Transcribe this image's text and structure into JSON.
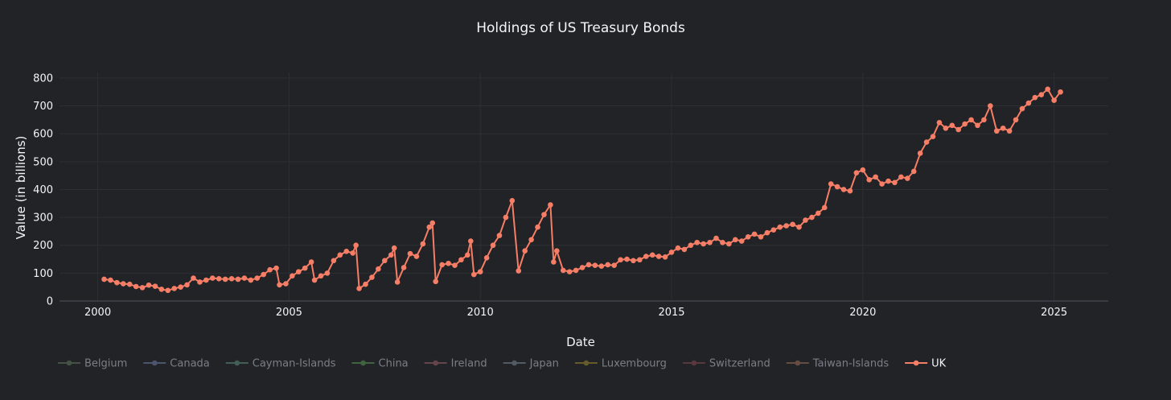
{
  "chart_data": {
    "type": "line",
    "title": "Holdings of US Treasury Bonds",
    "xlabel": "Date",
    "ylabel": "Value (in billions)",
    "xlim": [
      "1999-01",
      "2026-06"
    ],
    "ylim": [
      0,
      820
    ],
    "x_ticks": [
      {
        "value": "2000-01",
        "label": "2000"
      },
      {
        "value": "2005-01",
        "label": "2005"
      },
      {
        "value": "2010-01",
        "label": "2010"
      },
      {
        "value": "2015-01",
        "label": "2015"
      },
      {
        "value": "2020-01",
        "label": "2020"
      },
      {
        "value": "2025-01",
        "label": "2025"
      }
    ],
    "y_ticks": [
      0,
      100,
      200,
      300,
      400,
      500,
      600,
      700,
      800
    ],
    "grid": true,
    "legend_position": "bottom-left, horizontal",
    "series": [
      {
        "name": "Belgium",
        "color": "#5f7a5f",
        "visible": false,
        "values": []
      },
      {
        "name": "Canada",
        "color": "#6f7fa6",
        "visible": false,
        "values": []
      },
      {
        "name": "Cayman-Islands",
        "color": "#5f8f7a",
        "visible": false,
        "values": []
      },
      {
        "name": "China",
        "color": "#5a9a55",
        "visible": false,
        "values": []
      },
      {
        "name": "Ireland",
        "color": "#a0606a",
        "visible": false,
        "values": []
      },
      {
        "name": "Japan",
        "color": "#7f8796",
        "visible": false,
        "values": []
      },
      {
        "name": "Luxembourg",
        "color": "#a08a30",
        "visible": false,
        "values": []
      },
      {
        "name": "Switzerland",
        "color": "#8a4a55",
        "visible": false,
        "values": []
      },
      {
        "name": "Taiwan-Islands",
        "color": "#a0705a",
        "visible": false,
        "values": []
      },
      {
        "name": "UK",
        "color": "#f67e66",
        "visible": true,
        "points": [
          [
            "2000-03",
            78
          ],
          [
            "2000-05",
            75
          ],
          [
            "2000-07",
            66
          ],
          [
            "2000-09",
            62
          ],
          [
            "2000-11",
            60
          ],
          [
            "2001-01",
            52
          ],
          [
            "2001-03",
            48
          ],
          [
            "2001-05",
            57
          ],
          [
            "2001-07",
            53
          ],
          [
            "2001-09",
            42
          ],
          [
            "2001-11",
            38
          ],
          [
            "2002-01",
            45
          ],
          [
            "2002-03",
            50
          ],
          [
            "2002-05",
            58
          ],
          [
            "2002-07",
            82
          ],
          [
            "2002-09",
            68
          ],
          [
            "2002-11",
            75
          ],
          [
            "2003-01",
            82
          ],
          [
            "2003-03",
            80
          ],
          [
            "2003-05",
            78
          ],
          [
            "2003-07",
            80
          ],
          [
            "2003-09",
            78
          ],
          [
            "2003-11",
            82
          ],
          [
            "2004-01",
            75
          ],
          [
            "2004-03",
            82
          ],
          [
            "2004-05",
            95
          ],
          [
            "2004-07",
            112
          ],
          [
            "2004-09",
            118
          ],
          [
            "2004-10",
            58
          ],
          [
            "2004-12",
            62
          ],
          [
            "2005-02",
            90
          ],
          [
            "2005-04",
            105
          ],
          [
            "2005-06",
            118
          ],
          [
            "2005-08",
            140
          ],
          [
            "2005-09",
            75
          ],
          [
            "2005-11",
            90
          ],
          [
            "2006-01",
            100
          ],
          [
            "2006-03",
            145
          ],
          [
            "2006-05",
            165
          ],
          [
            "2006-07",
            178
          ],
          [
            "2006-09",
            172
          ],
          [
            "2006-10",
            200
          ],
          [
            "2006-11",
            45
          ],
          [
            "2007-01",
            60
          ],
          [
            "2007-03",
            85
          ],
          [
            "2007-05",
            115
          ],
          [
            "2007-07",
            145
          ],
          [
            "2007-09",
            165
          ],
          [
            "2007-10",
            190
          ],
          [
            "2007-11",
            68
          ],
          [
            "2008-01",
            120
          ],
          [
            "2008-03",
            170
          ],
          [
            "2008-05",
            160
          ],
          [
            "2008-07",
            205
          ],
          [
            "2008-09",
            265
          ],
          [
            "2008-10",
            280
          ],
          [
            "2008-11",
            70
          ],
          [
            "2009-01",
            130
          ],
          [
            "2009-03",
            135
          ],
          [
            "2009-05",
            128
          ],
          [
            "2009-07",
            148
          ],
          [
            "2009-09",
            165
          ],
          [
            "2009-10",
            215
          ],
          [
            "2009-11",
            95
          ],
          [
            "2010-01",
            105
          ],
          [
            "2010-03",
            155
          ],
          [
            "2010-05",
            200
          ],
          [
            "2010-07",
            235
          ],
          [
            "2010-09",
            300
          ],
          [
            "2010-11",
            360
          ],
          [
            "2011-01",
            108
          ],
          [
            "2011-03",
            180
          ],
          [
            "2011-05",
            220
          ],
          [
            "2011-07",
            265
          ],
          [
            "2011-09",
            310
          ],
          [
            "2011-11",
            345
          ],
          [
            "2011-12",
            140
          ],
          [
            "2012-01",
            180
          ],
          [
            "2012-03",
            110
          ],
          [
            "2012-05",
            105
          ],
          [
            "2012-07",
            110
          ],
          [
            "2012-09",
            120
          ],
          [
            "2012-11",
            130
          ],
          [
            "2013-01",
            128
          ],
          [
            "2013-03",
            125
          ],
          [
            "2013-05",
            130
          ],
          [
            "2013-07",
            128
          ],
          [
            "2013-09",
            148
          ],
          [
            "2013-11",
            150
          ],
          [
            "2014-01",
            145
          ],
          [
            "2014-03",
            148
          ],
          [
            "2014-05",
            160
          ],
          [
            "2014-07",
            165
          ],
          [
            "2014-09",
            160
          ],
          [
            "2014-11",
            158
          ],
          [
            "2015-01",
            175
          ],
          [
            "2015-03",
            190
          ],
          [
            "2015-05",
            185
          ],
          [
            "2015-07",
            200
          ],
          [
            "2015-09",
            210
          ],
          [
            "2015-11",
            205
          ],
          [
            "2016-01",
            210
          ],
          [
            "2016-03",
            225
          ],
          [
            "2016-05",
            210
          ],
          [
            "2016-07",
            205
          ],
          [
            "2016-09",
            220
          ],
          [
            "2016-11",
            215
          ],
          [
            "2017-01",
            230
          ],
          [
            "2017-03",
            240
          ],
          [
            "2017-05",
            230
          ],
          [
            "2017-07",
            245
          ],
          [
            "2017-09",
            255
          ],
          [
            "2017-11",
            265
          ],
          [
            "2018-01",
            270
          ],
          [
            "2018-03",
            275
          ],
          [
            "2018-05",
            265
          ],
          [
            "2018-07",
            290
          ],
          [
            "2018-09",
            300
          ],
          [
            "2018-11",
            315
          ],
          [
            "2019-01",
            335
          ],
          [
            "2019-03",
            420
          ],
          [
            "2019-05",
            410
          ],
          [
            "2019-07",
            400
          ],
          [
            "2019-09",
            395
          ],
          [
            "2019-11",
            460
          ],
          [
            "2020-01",
            470
          ],
          [
            "2020-03",
            435
          ],
          [
            "2020-05",
            445
          ],
          [
            "2020-07",
            420
          ],
          [
            "2020-09",
            430
          ],
          [
            "2020-11",
            425
          ],
          [
            "2021-01",
            445
          ],
          [
            "2021-03",
            440
          ],
          [
            "2021-05",
            465
          ],
          [
            "2021-07",
            530
          ],
          [
            "2021-09",
            570
          ],
          [
            "2021-11",
            590
          ],
          [
            "2022-01",
            640
          ],
          [
            "2022-03",
            620
          ],
          [
            "2022-05",
            630
          ],
          [
            "2022-07",
            615
          ],
          [
            "2022-09",
            635
          ],
          [
            "2022-11",
            650
          ],
          [
            "2023-01",
            630
          ],
          [
            "2023-03",
            650
          ],
          [
            "2023-05",
            700
          ],
          [
            "2023-07",
            610
          ],
          [
            "2023-09",
            620
          ],
          [
            "2023-11",
            610
          ],
          [
            "2024-01",
            650
          ],
          [
            "2024-03",
            690
          ],
          [
            "2024-05",
            710
          ],
          [
            "2024-07",
            730
          ],
          [
            "2024-09",
            740
          ],
          [
            "2024-11",
            760
          ],
          [
            "2025-01",
            720
          ],
          [
            "2025-03",
            750
          ]
        ]
      }
    ]
  }
}
